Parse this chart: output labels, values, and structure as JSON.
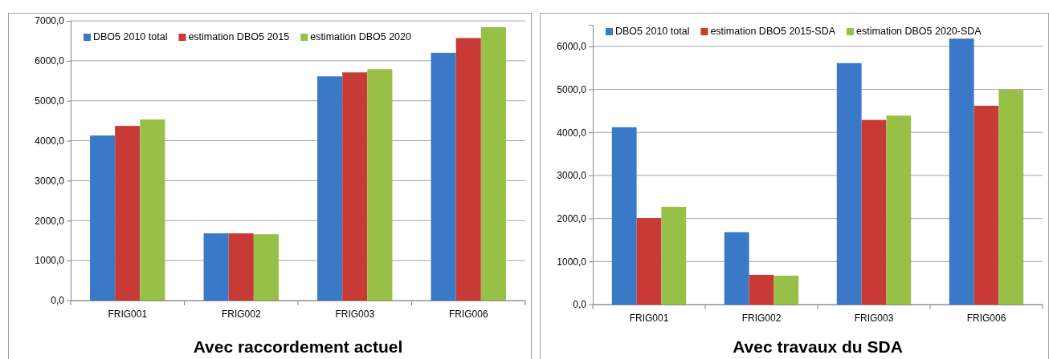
{
  "chart_data": [
    {
      "type": "bar",
      "title": "Avec raccordement actuel",
      "categories": [
        "FRIG001",
        "FRIG002",
        "FRIG003",
        "FRIG006"
      ],
      "series": [
        {
          "name": "DBO5 2010 total",
          "color": "#3a78c8",
          "values": [
            4130,
            1680,
            5610,
            6200
          ]
        },
        {
          "name": "estimation DBO5 2015",
          "color": "#c83a36",
          "values": [
            4370,
            1680,
            5710,
            6570
          ]
        },
        {
          "name": "estimation DBO5 2020",
          "color": "#98c046",
          "values": [
            4530,
            1660,
            5790,
            6840
          ]
        }
      ],
      "ylim": [
        0,
        7000
      ],
      "yticks": [
        {
          "value": 0,
          "label": "0,0"
        },
        {
          "value": 1000,
          "label": "1000,0"
        },
        {
          "value": 2000,
          "label": "2000,0"
        },
        {
          "value": 3000,
          "label": "3000,0"
        },
        {
          "value": 4000,
          "label": "4000,0"
        },
        {
          "value": 5000,
          "label": "5000,0"
        },
        {
          "value": 6000,
          "label": "6000,0"
        },
        {
          "value": 7000,
          "label": "7000,0"
        }
      ],
      "grid": "y",
      "legend": "top"
    },
    {
      "type": "bar",
      "title": "Avec  travaux du SDA",
      "categories": [
        "FRIG001",
        "FRIG002",
        "FRIG003",
        "FRIG006"
      ],
      "series": [
        {
          "name": "DBO5 2010 total",
          "color": "#3a78c8",
          "values": [
            4120,
            1680,
            5610,
            6180
          ]
        },
        {
          "name": "estimation DBO5 2015-SDA",
          "color": "#c83a36",
          "values": [
            2010,
            690,
            4290,
            4620
          ]
        },
        {
          "name": "estimation DBO5 2020-SDA",
          "color": "#98c046",
          "values": [
            2270,
            670,
            4390,
            4990
          ]
        }
      ],
      "ylim": [
        0,
        6500
      ],
      "yticks": [
        {
          "value": 0,
          "label": "0,0"
        },
        {
          "value": 1000,
          "label": "1000,0"
        },
        {
          "value": 2000,
          "label": "2000,0"
        },
        {
          "value": 3000,
          "label": "3000,0"
        },
        {
          "value": 4000,
          "label": "4000,0"
        },
        {
          "value": 5000,
          "label": "5000,0"
        },
        {
          "value": 6000,
          "label": "6000,0"
        }
      ],
      "grid": "y",
      "legend": "top"
    }
  ]
}
